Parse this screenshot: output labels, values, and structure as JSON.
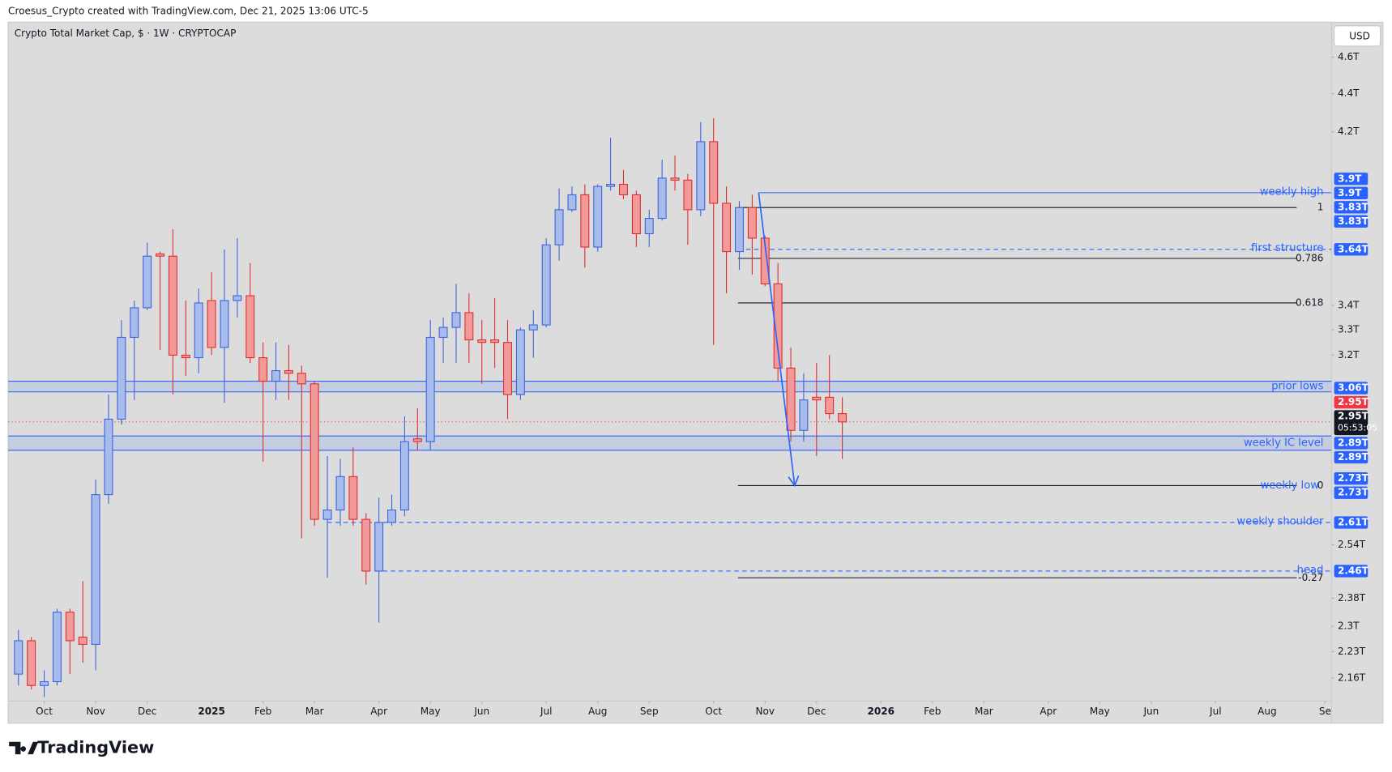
{
  "header": {
    "attribution": "Croesus_Crypto created with TradingView.com, Dec 21, 2025 13:06 UTC-5",
    "logo": "TradingView"
  },
  "chart_data": {
    "type": "candlestick",
    "title": "Crypto Total Market Cap, $ · 1W · CRYPTOCAP",
    "currency": "USD",
    "categories": [
      null,
      null,
      null,
      null,
      null,
      null,
      null,
      null,
      null,
      null,
      null,
      null,
      null,
      null,
      null,
      null,
      null,
      null,
      null,
      null,
      null,
      null,
      null,
      null,
      null,
      null,
      null,
      null,
      null,
      null,
      null,
      null,
      null,
      null,
      null,
      null,
      null,
      null,
      null,
      null,
      null,
      null,
      null,
      null,
      null,
      null,
      null,
      null,
      null,
      null,
      null,
      null,
      null,
      null,
      null,
      null,
      null,
      null,
      null,
      null,
      null,
      null,
      null,
      null,
      null
    ],
    "open": [
      2.17,
      2.26,
      2.14,
      2.15,
      2.34,
      2.27,
      2.25,
      2.7,
      2.96,
      3.27,
      3.39,
      3.62,
      3.61,
      3.2,
      3.19,
      3.42,
      3.23,
      3.42,
      3.44,
      3.19,
      3.1,
      3.14,
      3.13,
      3.09,
      2.62,
      2.65,
      2.76,
      2.62,
      2.46,
      2.61,
      2.65,
      2.89,
      2.88,
      3.27,
      3.31,
      3.37,
      3.26,
      3.26,
      3.25,
      3.05,
      3.3,
      3.32,
      3.66,
      3.82,
      3.89,
      3.65,
      3.93,
      3.94,
      3.89,
      3.71,
      3.78,
      3.97,
      3.96,
      3.82,
      4.15,
      3.85,
      3.63,
      3.83,
      3.69,
      3.49,
      3.15,
      2.92,
      3.04,
      3.04,
      2.98
    ],
    "high": [
      2.29,
      2.27,
      2.18,
      2.35,
      2.35,
      2.43,
      2.75,
      3.05,
      3.34,
      3.42,
      3.67,
      3.63,
      3.73,
      3.42,
      3.47,
      3.54,
      3.64,
      3.69,
      3.58,
      3.25,
      3.25,
      3.24,
      3.16,
      3.1,
      2.83,
      2.82,
      2.86,
      2.64,
      2.69,
      2.7,
      2.97,
      3.0,
      3.34,
      3.35,
      3.49,
      3.45,
      3.34,
      3.43,
      3.34,
      3.31,
      3.38,
      3.69,
      3.92,
      3.93,
      3.94,
      3.94,
      4.17,
      4.01,
      3.91,
      3.82,
      4.06,
      4.08,
      3.99,
      4.25,
      4.27,
      3.93,
      3.86,
      3.89,
      3.7,
      3.58,
      3.23,
      3.13,
      3.17,
      3.2,
      3.04
    ],
    "low": [
      2.14,
      2.13,
      2.11,
      2.14,
      2.17,
      2.2,
      2.18,
      2.67,
      2.94,
      3.03,
      3.38,
      3.22,
      3.05,
      3.12,
      3.13,
      3.2,
      3.02,
      3.35,
      3.17,
      2.81,
      3.03,
      3.03,
      2.56,
      2.6,
      2.44,
      2.6,
      2.6,
      2.42,
      2.31,
      2.6,
      2.63,
      2.85,
      2.85,
      3.17,
      3.17,
      3.17,
      3.09,
      3.15,
      2.96,
      3.03,
      3.19,
      3.31,
      3.59,
      3.81,
      3.56,
      3.63,
      3.91,
      3.87,
      3.65,
      3.65,
      3.77,
      3.91,
      3.66,
      3.79,
      3.24,
      3.45,
      3.55,
      3.53,
      3.48,
      3.1,
      2.88,
      2.88,
      2.83,
      2.96,
      2.82
    ],
    "close": [
      2.26,
      2.14,
      2.15,
      2.34,
      2.26,
      2.25,
      2.7,
      2.96,
      3.27,
      3.39,
      3.61,
      3.61,
      3.2,
      3.19,
      3.41,
      3.23,
      3.42,
      3.44,
      3.19,
      3.1,
      3.14,
      3.13,
      3.09,
      2.62,
      2.65,
      2.76,
      2.62,
      2.46,
      2.61,
      2.65,
      2.88,
      2.88,
      3.27,
      3.31,
      3.37,
      3.26,
      3.25,
      3.25,
      3.05,
      3.3,
      3.32,
      3.66,
      3.82,
      3.89,
      3.65,
      3.93,
      3.94,
      3.89,
      3.71,
      3.78,
      3.97,
      3.96,
      3.82,
      4.15,
      3.85,
      3.63,
      3.83,
      3.69,
      3.49,
      3.15,
      2.92,
      3.03,
      3.03,
      2.98,
      2.95
    ],
    "up_color": "#3d63dd",
    "down_color": "#e02e2e",
    "up_fill": "#a8bcec",
    "down_fill": "#f29a9a",
    "xlim": [
      -0.8,
      102
    ],
    "xticks": [
      {
        "value": 2,
        "label": "Oct"
      },
      {
        "value": 6,
        "label": "Nov"
      },
      {
        "value": 10,
        "label": "Dec"
      },
      {
        "value": 15,
        "label": "2025"
      },
      {
        "value": 19,
        "label": "Feb"
      },
      {
        "value": 23,
        "label": "Mar"
      },
      {
        "value": 28,
        "label": "Apr"
      },
      {
        "value": 32,
        "label": "May"
      },
      {
        "value": 36,
        "label": "Jun"
      },
      {
        "value": 41,
        "label": "Jul"
      },
      {
        "value": 45,
        "label": "Aug"
      },
      {
        "value": 49,
        "label": "Sep"
      },
      {
        "value": 54,
        "label": "Oct"
      },
      {
        "value": 58,
        "label": "Nov"
      },
      {
        "value": 62,
        "label": "Dec"
      },
      {
        "value": 67,
        "label": "2026"
      },
      {
        "value": 71,
        "label": "Feb"
      },
      {
        "value": 75,
        "label": "Mar"
      },
      {
        "value": 80,
        "label": "Apr"
      },
      {
        "value": 84,
        "label": "May"
      },
      {
        "value": 88,
        "label": "Jun"
      },
      {
        "value": 93,
        "label": "Jul"
      },
      {
        "value": 97,
        "label": "Aug"
      },
      {
        "value": 101.5,
        "label": "Se"
      }
    ],
    "ylim": [
      2.1,
      4.8
    ],
    "yscale": "log",
    "yticks": [
      {
        "value": 4.6,
        "label": "4.6T"
      },
      {
        "value": 4.4,
        "label": "4.4T"
      },
      {
        "value": 4.2,
        "label": "4.2T"
      },
      {
        "value": 3.4,
        "label": "3.4T"
      },
      {
        "value": 3.3,
        "label": "3.3T"
      },
      {
        "value": 3.2,
        "label": "3.2T"
      },
      {
        "value": 2.54,
        "label": "2.54T"
      },
      {
        "value": 2.38,
        "label": "2.38T"
      },
      {
        "value": 2.3,
        "label": "2.3T"
      },
      {
        "value": 2.23,
        "label": "2.23T"
      },
      {
        "value": 2.16,
        "label": "2.16T"
      }
    ],
    "grid": false,
    "annotation_color": "#2962ff",
    "levels": [
      {
        "name": "weekly high",
        "value": 3.9,
        "start": 57.5,
        "style": "solid"
      },
      {
        "name": "first structure",
        "value": 3.64,
        "start": 55.9,
        "style": "dashed"
      },
      {
        "name": "weekly shoulder",
        "value": 2.61,
        "start": 24,
        "style": "dashed"
      },
      {
        "name": "head",
        "value": 2.46,
        "start": 28.3,
        "style": "dashed"
      }
    ],
    "zones": [
      {
        "name": "prior lows",
        "top": 3.1,
        "bottom": 3.06
      },
      {
        "name": "weekly IC level",
        "top": 2.9,
        "bottom": 2.85
      }
    ],
    "labels": [
      {
        "text": "weekly low",
        "value": 2.73
      }
    ],
    "fib": {
      "start": 55.9,
      "end": 99.3,
      "levels": [
        {
          "ratio": 1,
          "value": 3.83
        },
        {
          "ratio": 0.786,
          "value": 3.6
        },
        {
          "ratio": 0.618,
          "value": 3.41
        },
        {
          "ratio": 0,
          "value": 2.73
        },
        {
          "ratio": -0.27,
          "value": 2.44
        }
      ]
    },
    "arrow": {
      "x": [
        57.5,
        60.3
      ],
      "y": [
        3.9,
        2.73
      ]
    },
    "last_price": 2.95,
    "last_price_color": "#f23645",
    "price_badges": [
      {
        "value": 3.9,
        "label": "3.9T",
        "color": "#2962ff"
      },
      {
        "value": 3.9,
        "label": "3.9T",
        "color": "#2962ff"
      },
      {
        "value": 3.83,
        "label": "3.83T",
        "color": "#2962ff"
      },
      {
        "value": 3.83,
        "label": "3.83T",
        "color": "#2962ff"
      },
      {
        "value": 3.64,
        "label": "3.64T",
        "color": "#2962ff"
      },
      {
        "value": 3.06,
        "label": "3.06T",
        "color": "#2962ff"
      },
      {
        "value": 2.95,
        "label": "2.95T",
        "color": "#f23645"
      },
      {
        "value": 2.95,
        "label": "2.95T",
        "color": "#131722",
        "countdown": "05:53:05"
      },
      {
        "value": 2.89,
        "label": "2.89T",
        "color": "#2962ff"
      },
      {
        "value": 2.89,
        "label": "2.89T",
        "color": "#2962ff"
      },
      {
        "value": 2.73,
        "label": "2.73T",
        "color": "#2962ff"
      },
      {
        "value": 2.73,
        "label": "2.73T",
        "color": "#2962ff"
      },
      {
        "value": 2.61,
        "label": "2.61T",
        "color": "#2962ff"
      },
      {
        "value": 2.46,
        "label": "2.46T",
        "color": "#2962ff"
      }
    ]
  }
}
